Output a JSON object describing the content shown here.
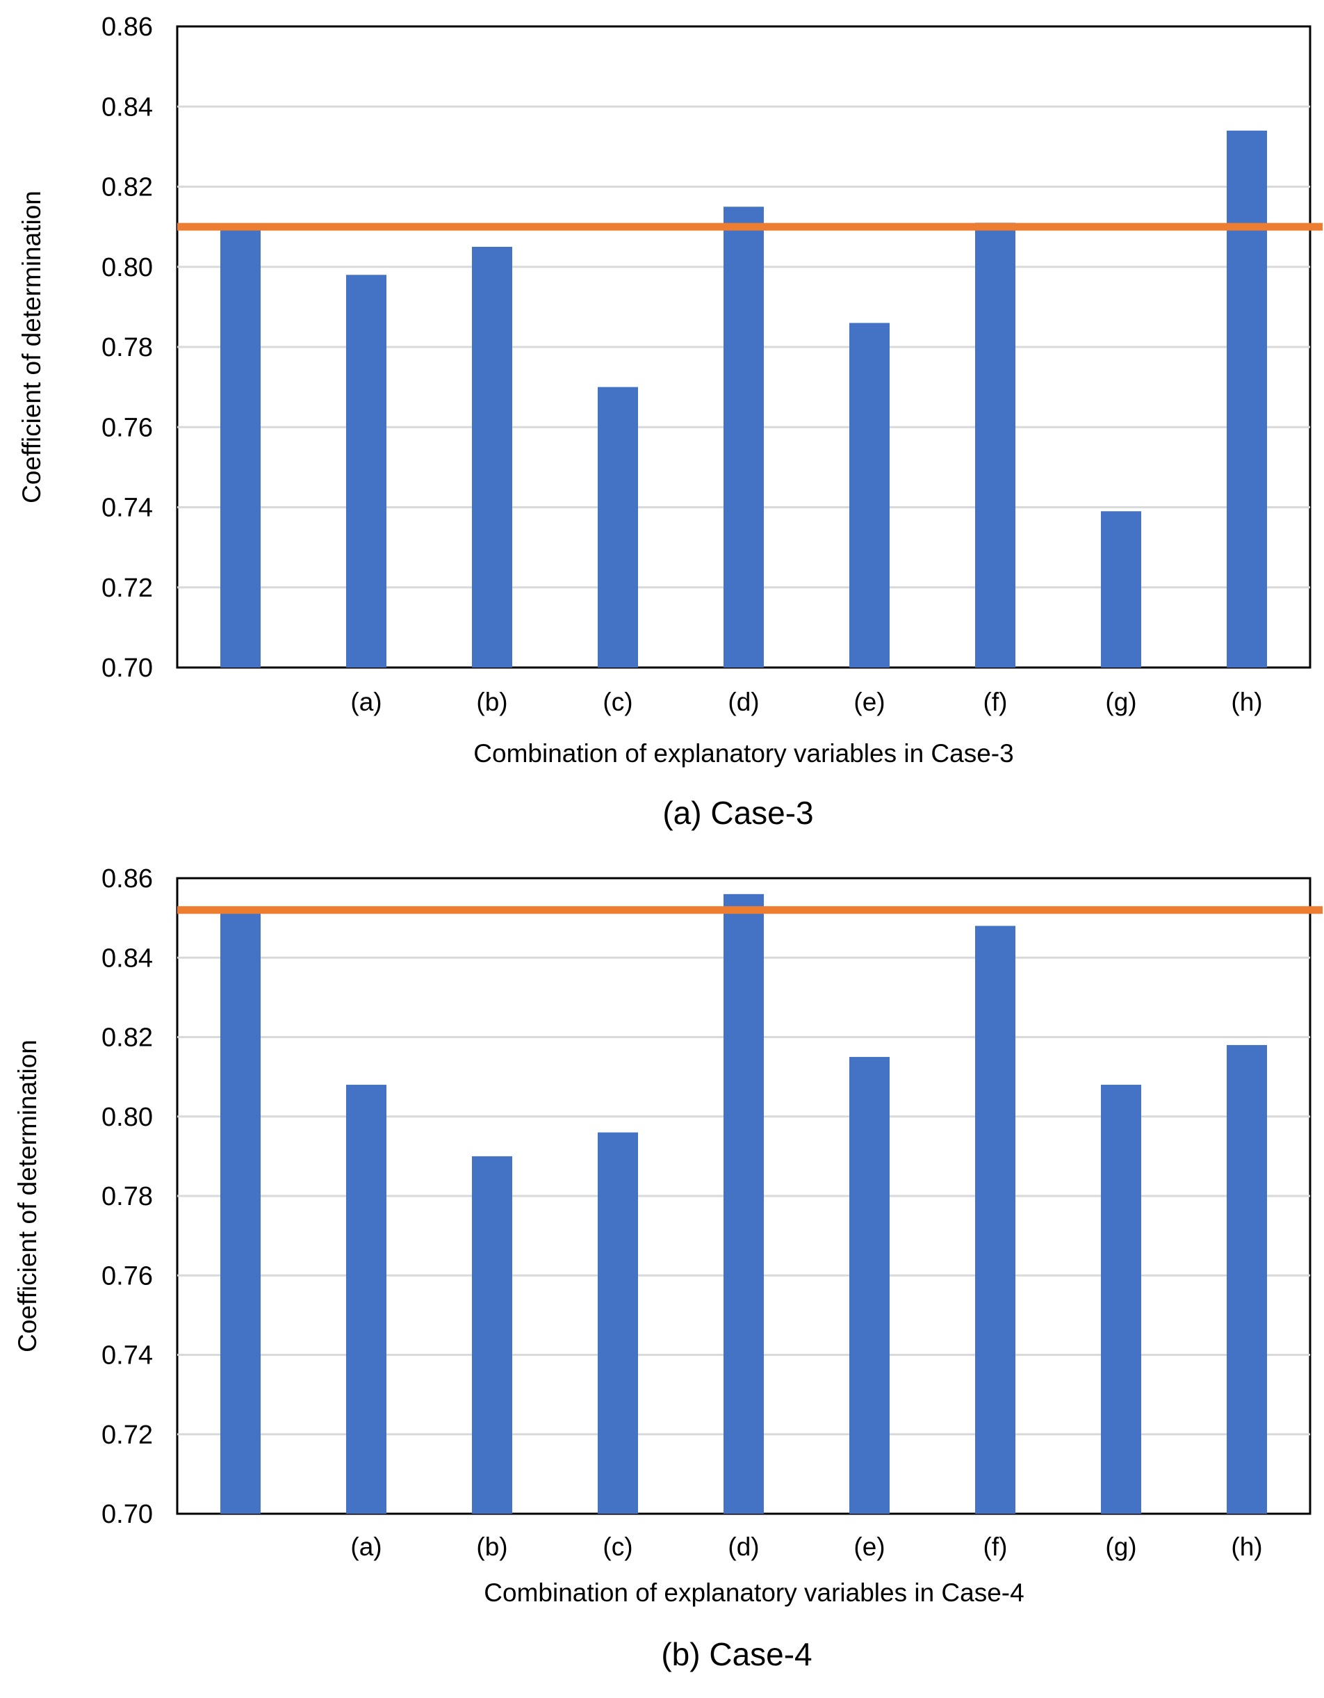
{
  "chart_data": [
    {
      "type": "bar",
      "title": "(a) Case-3",
      "xlabel": "Combination of explanatory variables in Case-3",
      "ylabel": "Coefficient of determination",
      "ylim": [
        0.7,
        0.86
      ],
      "yticks": [
        "0.70",
        "0.72",
        "0.74",
        "0.76",
        "0.78",
        "0.80",
        "0.82",
        "0.84",
        "0.86"
      ],
      "grid": true,
      "categories": [
        "",
        "(a)",
        "(b)",
        "(c)",
        "(d)",
        "(e)",
        "(f)",
        "(g)",
        "(h)"
      ],
      "series": [
        {
          "name": "bars",
          "color": "#4472C4",
          "values": [
            0.81,
            0.798,
            0.805,
            0.77,
            0.815,
            0.786,
            0.811,
            0.739,
            0.834
          ]
        }
      ],
      "reference_line": {
        "value": 0.81,
        "color": "#ED7D31"
      }
    },
    {
      "type": "bar",
      "title": "(b) Case-4",
      "xlabel": "Combination of explanatory variables in Case-4",
      "ylabel": "Coefficient of determination",
      "ylim": [
        0.7,
        0.86
      ],
      "yticks": [
        "0.70",
        "0.72",
        "0.74",
        "0.76",
        "0.78",
        "0.80",
        "0.82",
        "0.84",
        "0.86"
      ],
      "grid": true,
      "categories": [
        "",
        "(a)",
        "(b)",
        "(c)",
        "(d)",
        "(e)",
        "(f)",
        "(g)",
        "(h)"
      ],
      "series": [
        {
          "name": "bars",
          "color": "#4472C4",
          "values": [
            0.852,
            0.808,
            0.79,
            0.796,
            0.856,
            0.815,
            0.848,
            0.808,
            0.818
          ]
        }
      ],
      "reference_line": {
        "value": 0.852,
        "color": "#ED7D31"
      }
    }
  ]
}
